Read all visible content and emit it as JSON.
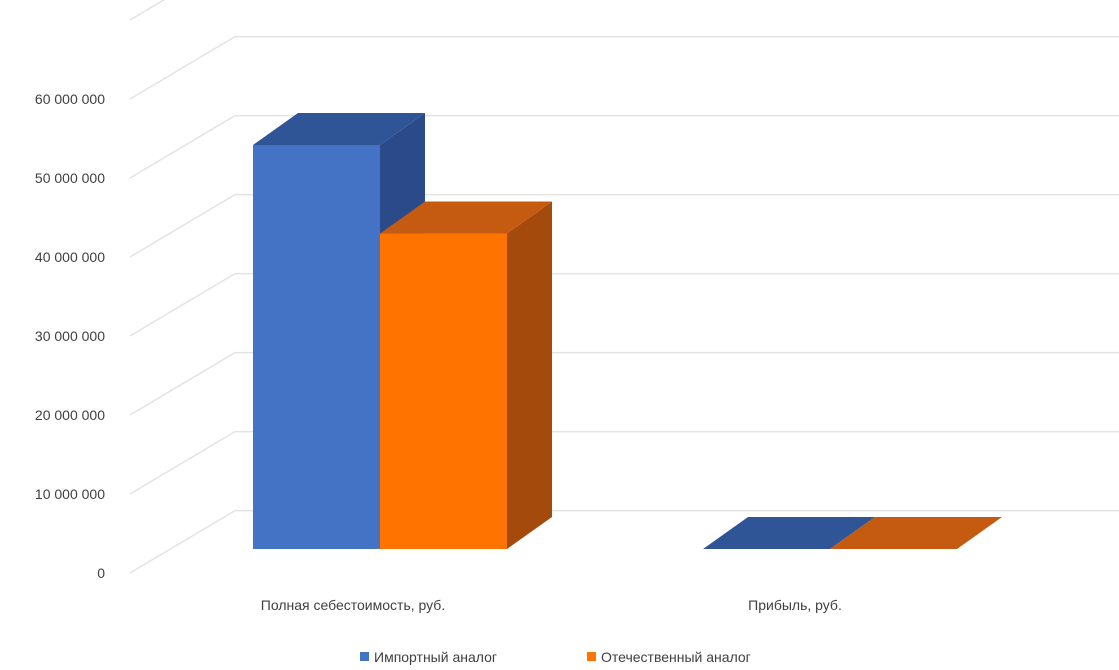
{
  "chart_data": {
    "type": "bar",
    "style": "3d-clustered-column",
    "categories": [
      "Полная себестоимость, руб.",
      "Прибыль, руб."
    ],
    "series": [
      {
        "name": "Импортный аналог",
        "values": [
          50200000,
          0
        ],
        "color": "#4472c4",
        "top_color": "#2f5597",
        "side_color": "#2a4a8a"
      },
      {
        "name": "Отечественный аналог",
        "values": [
          39200000,
          0
        ],
        "color": "#ff7300",
        "top_color": "#c55a11",
        "side_color": "#a44a0c"
      }
    ],
    "ylim": [
      0,
      70000000
    ],
    "y_ticks": [
      0,
      10000000,
      20000000,
      30000000,
      40000000,
      50000000,
      60000000
    ],
    "y_tick_labels": [
      "0",
      "10 000 000",
      "20 000 000",
      "30 000 000",
      "40 000 000",
      "50 000 000",
      "60 000 000"
    ],
    "grid": true,
    "legend_position": "bottom"
  }
}
